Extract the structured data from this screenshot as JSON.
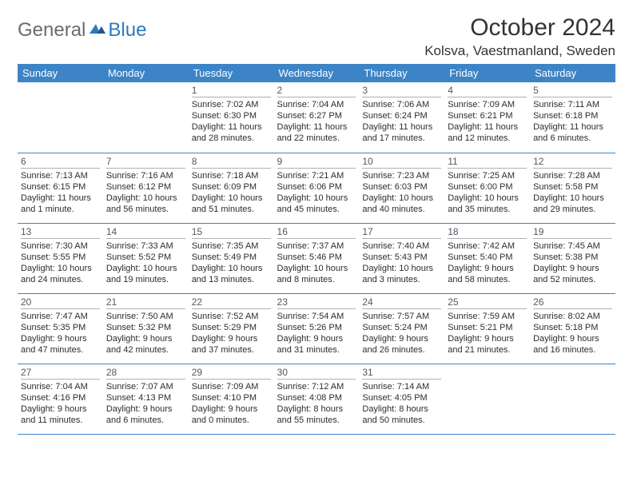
{
  "brand": {
    "general": "General",
    "blue": "Blue"
  },
  "title": "October 2024",
  "location": "Kolsva, Vaestmanland, Sweden",
  "colors": {
    "header_bg": "#3d84c6",
    "header_text": "#ffffff",
    "divider": "#3d84c6",
    "day_divider": "#a9b2b9",
    "body_text": "#2d2d2d",
    "logo_general": "#6b6b6b",
    "logo_blue": "#2b7bbf",
    "background": "#ffffff"
  },
  "days_of_week": [
    "Sunday",
    "Monday",
    "Tuesday",
    "Wednesday",
    "Thursday",
    "Friday",
    "Saturday"
  ],
  "grid": [
    [
      null,
      null,
      {
        "n": "1",
        "sr": "Sunrise: 7:02 AM",
        "ss": "Sunset: 6:30 PM",
        "dl": "Daylight: 11 hours and 28 minutes."
      },
      {
        "n": "2",
        "sr": "Sunrise: 7:04 AM",
        "ss": "Sunset: 6:27 PM",
        "dl": "Daylight: 11 hours and 22 minutes."
      },
      {
        "n": "3",
        "sr": "Sunrise: 7:06 AM",
        "ss": "Sunset: 6:24 PM",
        "dl": "Daylight: 11 hours and 17 minutes."
      },
      {
        "n": "4",
        "sr": "Sunrise: 7:09 AM",
        "ss": "Sunset: 6:21 PM",
        "dl": "Daylight: 11 hours and 12 minutes."
      },
      {
        "n": "5",
        "sr": "Sunrise: 7:11 AM",
        "ss": "Sunset: 6:18 PM",
        "dl": "Daylight: 11 hours and 6 minutes."
      }
    ],
    [
      {
        "n": "6",
        "sr": "Sunrise: 7:13 AM",
        "ss": "Sunset: 6:15 PM",
        "dl": "Daylight: 11 hours and 1 minute."
      },
      {
        "n": "7",
        "sr": "Sunrise: 7:16 AM",
        "ss": "Sunset: 6:12 PM",
        "dl": "Daylight: 10 hours and 56 minutes."
      },
      {
        "n": "8",
        "sr": "Sunrise: 7:18 AM",
        "ss": "Sunset: 6:09 PM",
        "dl": "Daylight: 10 hours and 51 minutes."
      },
      {
        "n": "9",
        "sr": "Sunrise: 7:21 AM",
        "ss": "Sunset: 6:06 PM",
        "dl": "Daylight: 10 hours and 45 minutes."
      },
      {
        "n": "10",
        "sr": "Sunrise: 7:23 AM",
        "ss": "Sunset: 6:03 PM",
        "dl": "Daylight: 10 hours and 40 minutes."
      },
      {
        "n": "11",
        "sr": "Sunrise: 7:25 AM",
        "ss": "Sunset: 6:00 PM",
        "dl": "Daylight: 10 hours and 35 minutes."
      },
      {
        "n": "12",
        "sr": "Sunrise: 7:28 AM",
        "ss": "Sunset: 5:58 PM",
        "dl": "Daylight: 10 hours and 29 minutes."
      }
    ],
    [
      {
        "n": "13",
        "sr": "Sunrise: 7:30 AM",
        "ss": "Sunset: 5:55 PM",
        "dl": "Daylight: 10 hours and 24 minutes."
      },
      {
        "n": "14",
        "sr": "Sunrise: 7:33 AM",
        "ss": "Sunset: 5:52 PM",
        "dl": "Daylight: 10 hours and 19 minutes."
      },
      {
        "n": "15",
        "sr": "Sunrise: 7:35 AM",
        "ss": "Sunset: 5:49 PM",
        "dl": "Daylight: 10 hours and 13 minutes."
      },
      {
        "n": "16",
        "sr": "Sunrise: 7:37 AM",
        "ss": "Sunset: 5:46 PM",
        "dl": "Daylight: 10 hours and 8 minutes."
      },
      {
        "n": "17",
        "sr": "Sunrise: 7:40 AM",
        "ss": "Sunset: 5:43 PM",
        "dl": "Daylight: 10 hours and 3 minutes."
      },
      {
        "n": "18",
        "sr": "Sunrise: 7:42 AM",
        "ss": "Sunset: 5:40 PM",
        "dl": "Daylight: 9 hours and 58 minutes."
      },
      {
        "n": "19",
        "sr": "Sunrise: 7:45 AM",
        "ss": "Sunset: 5:38 PM",
        "dl": "Daylight: 9 hours and 52 minutes."
      }
    ],
    [
      {
        "n": "20",
        "sr": "Sunrise: 7:47 AM",
        "ss": "Sunset: 5:35 PM",
        "dl": "Daylight: 9 hours and 47 minutes."
      },
      {
        "n": "21",
        "sr": "Sunrise: 7:50 AM",
        "ss": "Sunset: 5:32 PM",
        "dl": "Daylight: 9 hours and 42 minutes."
      },
      {
        "n": "22",
        "sr": "Sunrise: 7:52 AM",
        "ss": "Sunset: 5:29 PM",
        "dl": "Daylight: 9 hours and 37 minutes."
      },
      {
        "n": "23",
        "sr": "Sunrise: 7:54 AM",
        "ss": "Sunset: 5:26 PM",
        "dl": "Daylight: 9 hours and 31 minutes."
      },
      {
        "n": "24",
        "sr": "Sunrise: 7:57 AM",
        "ss": "Sunset: 5:24 PM",
        "dl": "Daylight: 9 hours and 26 minutes."
      },
      {
        "n": "25",
        "sr": "Sunrise: 7:59 AM",
        "ss": "Sunset: 5:21 PM",
        "dl": "Daylight: 9 hours and 21 minutes."
      },
      {
        "n": "26",
        "sr": "Sunrise: 8:02 AM",
        "ss": "Sunset: 5:18 PM",
        "dl": "Daylight: 9 hours and 16 minutes."
      }
    ],
    [
      {
        "n": "27",
        "sr": "Sunrise: 7:04 AM",
        "ss": "Sunset: 4:16 PM",
        "dl": "Daylight: 9 hours and 11 minutes."
      },
      {
        "n": "28",
        "sr": "Sunrise: 7:07 AM",
        "ss": "Sunset: 4:13 PM",
        "dl": "Daylight: 9 hours and 6 minutes."
      },
      {
        "n": "29",
        "sr": "Sunrise: 7:09 AM",
        "ss": "Sunset: 4:10 PM",
        "dl": "Daylight: 9 hours and 0 minutes."
      },
      {
        "n": "30",
        "sr": "Sunrise: 7:12 AM",
        "ss": "Sunset: 4:08 PM",
        "dl": "Daylight: 8 hours and 55 minutes."
      },
      {
        "n": "31",
        "sr": "Sunrise: 7:14 AM",
        "ss": "Sunset: 4:05 PM",
        "dl": "Daylight: 8 hours and 50 minutes."
      },
      null,
      null
    ]
  ]
}
